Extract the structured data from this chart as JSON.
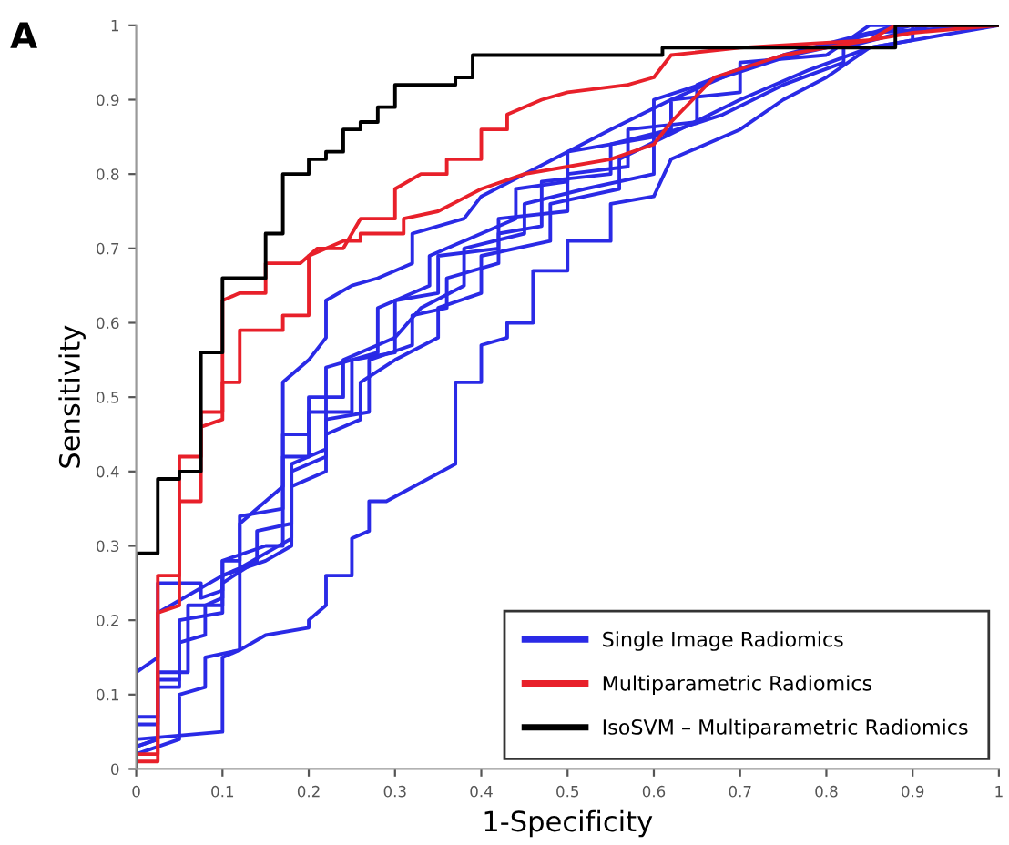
{
  "chart_data": {
    "type": "line",
    "xlabel": "1-Specificity",
    "ylabel": "Sensitivity",
    "annotations": [
      "A"
    ],
    "xlim": [
      0,
      1
    ],
    "ylim": [
      0,
      1
    ],
    "xticks": [
      0,
      0.1,
      0.2,
      0.3,
      0.4,
      0.5,
      0.6,
      0.7,
      0.8,
      0.9,
      1
    ],
    "yticks": [
      0,
      0.1,
      0.2,
      0.3,
      0.4,
      0.5,
      0.6,
      0.7,
      0.8,
      0.9,
      1
    ],
    "grid": false,
    "legend": "bottom right",
    "marker": "none",
    "line_style": "solid",
    "series": [
      {
        "name": "Single Image Radiomics",
        "color": "#2a2ae6",
        "x": [
          0,
          0,
          0.1,
          0.1,
          0.12,
          0.15,
          0.2,
          0.2,
          0.22,
          0.22,
          0.25,
          0.25,
          0.27,
          0.27,
          0.29,
          0.37,
          0.37,
          0.4,
          0.4,
          0.43,
          0.43,
          0.46,
          0.46,
          0.5,
          0.5,
          0.55,
          0.55,
          0.6,
          0.62,
          0.7,
          0.75,
          0.8,
          0.85,
          0.9,
          0.9,
          1
        ],
        "values": [
          0,
          0.04,
          0.05,
          0.15,
          0.16,
          0.18,
          0.19,
          0.2,
          0.22,
          0.26,
          0.26,
          0.31,
          0.32,
          0.36,
          0.36,
          0.41,
          0.52,
          0.52,
          0.57,
          0.58,
          0.6,
          0.6,
          0.67,
          0.67,
          0.71,
          0.71,
          0.76,
          0.77,
          0.82,
          0.86,
          0.9,
          0.93,
          0.97,
          0.98,
          1,
          1
        ]
      },
      {
        "color": "#2a2ae6",
        "x": [
          0,
          0,
          0.025,
          0.025,
          0.05,
          0.05,
          0.1,
          0.1,
          0.12,
          0.12,
          0.17,
          0.17,
          0.2,
          0.2,
          0.25,
          0.25,
          0.3,
          0.3,
          0.35,
          0.35,
          0.42,
          0.42,
          0.5,
          0.5,
          0.57,
          0.57,
          0.65,
          0.65,
          0.72,
          0.8,
          0.88,
          1
        ],
        "values": [
          0,
          0.07,
          0.07,
          0.12,
          0.12,
          0.2,
          0.21,
          0.26,
          0.27,
          0.34,
          0.35,
          0.42,
          0.42,
          0.48,
          0.48,
          0.55,
          0.56,
          0.63,
          0.64,
          0.69,
          0.7,
          0.74,
          0.75,
          0.8,
          0.81,
          0.86,
          0.87,
          0.92,
          0.95,
          0.97,
          1,
          1
        ]
      },
      {
        "color": "#2a2ae6",
        "x": [
          0,
          0,
          0.025,
          0.025,
          0.075,
          0.075,
          0.1,
          0.1,
          0.15,
          0.17,
          0.17,
          0.2,
          0.2,
          0.24,
          0.24,
          0.3,
          0.33,
          0.38,
          0.38,
          0.45,
          0.45,
          0.52,
          0.6,
          0.6,
          0.68,
          0.75,
          0.82,
          0.82,
          0.92,
          1
        ],
        "values": [
          0,
          0.13,
          0.15,
          0.25,
          0.25,
          0.23,
          0.24,
          0.28,
          0.3,
          0.3,
          0.45,
          0.45,
          0.5,
          0.5,
          0.55,
          0.58,
          0.62,
          0.65,
          0.7,
          0.72,
          0.76,
          0.78,
          0.8,
          0.85,
          0.88,
          0.92,
          0.95,
          0.97,
          1,
          1
        ]
      },
      {
        "color": "#2a2ae6",
        "x": [
          0,
          0,
          0.025,
          0.025,
          0.05,
          0.05,
          0.08,
          0.08,
          0.1,
          0.1,
          0.12,
          0.12,
          0.15,
          0.17,
          0.17,
          0.2,
          0.22,
          0.22,
          0.25,
          0.28,
          0.32,
          0.32,
          0.38,
          0.4,
          0.45,
          0.5,
          0.55,
          0.62,
          0.7,
          0.75,
          0.85,
          1
        ],
        "values": [
          0,
          0.03,
          0.04,
          0.11,
          0.11,
          0.17,
          0.18,
          0.22,
          0.23,
          0.28,
          0.28,
          0.33,
          0.36,
          0.38,
          0.52,
          0.55,
          0.58,
          0.63,
          0.65,
          0.66,
          0.68,
          0.72,
          0.74,
          0.77,
          0.8,
          0.83,
          0.86,
          0.9,
          0.94,
          0.96,
          0.99,
          1
        ]
      },
      {
        "color": "#2a2ae6",
        "x": [
          0,
          0,
          0.05,
          0.05,
          0.08,
          0.08,
          0.12,
          0.12,
          0.15,
          0.18,
          0.18,
          0.22,
          0.22,
          0.27,
          0.27,
          0.32,
          0.32,
          0.36,
          0.36,
          0.42,
          0.42,
          0.47,
          0.47,
          0.55,
          0.55,
          0.62,
          0.62,
          0.7,
          0.7,
          0.8,
          0.85,
          1
        ],
        "values": [
          0,
          0.02,
          0.04,
          0.1,
          0.11,
          0.15,
          0.16,
          0.27,
          0.29,
          0.31,
          0.4,
          0.42,
          0.47,
          0.48,
          0.55,
          0.57,
          0.61,
          0.62,
          0.66,
          0.68,
          0.72,
          0.73,
          0.79,
          0.8,
          0.84,
          0.86,
          0.9,
          0.91,
          0.95,
          0.96,
          1,
          1
        ]
      },
      {
        "color": "#2a2ae6",
        "x": [
          0,
          0,
          0.025,
          0.025,
          0.1,
          0.1,
          0.15,
          0.18,
          0.18,
          0.22,
          0.22,
          0.26,
          0.26,
          0.3,
          0.35,
          0.35,
          0.4,
          0.4,
          0.48,
          0.48,
          0.56,
          0.56,
          0.63,
          0.7,
          0.78,
          0.85,
          1
        ],
        "values": [
          0,
          0.06,
          0.06,
          0.21,
          0.26,
          0.26,
          0.28,
          0.3,
          0.38,
          0.4,
          0.45,
          0.47,
          0.52,
          0.55,
          0.58,
          0.62,
          0.64,
          0.69,
          0.71,
          0.76,
          0.78,
          0.82,
          0.86,
          0.9,
          0.94,
          0.97,
          1
        ]
      },
      {
        "color": "#2a2ae6",
        "x": [
          0,
          0,
          0.025,
          0.025,
          0.06,
          0.06,
          0.1,
          0.1,
          0.14,
          0.14,
          0.18,
          0.18,
          0.22,
          0.22,
          0.28,
          0.28,
          0.34,
          0.34,
          0.4,
          0.44,
          0.44,
          0.5,
          0.5,
          0.6,
          0.6,
          0.68,
          0.76,
          0.82,
          0.9,
          1
        ],
        "values": [
          0,
          0.03,
          0.04,
          0.13,
          0.13,
          0.22,
          0.22,
          0.25,
          0.28,
          0.32,
          0.33,
          0.41,
          0.43,
          0.54,
          0.56,
          0.62,
          0.65,
          0.69,
          0.72,
          0.74,
          0.78,
          0.79,
          0.83,
          0.85,
          0.9,
          0.93,
          0.96,
          0.98,
          1,
          1
        ]
      },
      {
        "name": "Multiparametric Radiomics",
        "color": "#e8202a",
        "x": [
          0,
          0,
          0.025,
          0.025,
          0.05,
          0.05,
          0.075,
          0.075,
          0.1,
          0.1,
          0.12,
          0.15,
          0.15,
          0.19,
          0.21,
          0.24,
          0.26,
          0.3,
          0.3,
          0.33,
          0.36,
          0.36,
          0.4,
          0.4,
          0.43,
          0.43,
          0.47,
          0.5,
          0.57,
          0.6,
          0.62,
          0.7,
          0.85,
          0.88,
          1
        ],
        "values": [
          0,
          0.02,
          0.02,
          0.26,
          0.26,
          0.42,
          0.42,
          0.48,
          0.48,
          0.63,
          0.64,
          0.64,
          0.68,
          0.68,
          0.7,
          0.7,
          0.74,
          0.74,
          0.78,
          0.8,
          0.8,
          0.82,
          0.82,
          0.86,
          0.86,
          0.88,
          0.9,
          0.91,
          0.92,
          0.93,
          0.96,
          0.97,
          0.98,
          1,
          1
        ]
      },
      {
        "color": "#e8202a",
        "x": [
          0,
          0,
          0.025,
          0.025,
          0.05,
          0.05,
          0.075,
          0.075,
          0.1,
          0.1,
          0.12,
          0.12,
          0.17,
          0.17,
          0.2,
          0.2,
          0.24,
          0.26,
          0.26,
          0.31,
          0.31,
          0.35,
          0.4,
          0.45,
          0.5,
          0.55,
          0.6,
          0.62,
          0.67,
          0.75,
          0.85,
          0.9,
          1
        ],
        "values": [
          0,
          0.01,
          0.01,
          0.21,
          0.22,
          0.36,
          0.36,
          0.46,
          0.47,
          0.52,
          0.52,
          0.59,
          0.59,
          0.61,
          0.61,
          0.69,
          0.71,
          0.71,
          0.72,
          0.72,
          0.74,
          0.75,
          0.78,
          0.8,
          0.81,
          0.82,
          0.84,
          0.87,
          0.93,
          0.96,
          0.98,
          0.99,
          1
        ]
      },
      {
        "name": "IsoSVM – Multiparametric Radiomics",
        "color": "#000000",
        "x": [
          0,
          0,
          0.025,
          0.025,
          0.05,
          0.05,
          0.075,
          0.075,
          0.1,
          0.1,
          0.15,
          0.15,
          0.17,
          0.17,
          0.2,
          0.2,
          0.22,
          0.22,
          0.24,
          0.24,
          0.26,
          0.26,
          0.28,
          0.28,
          0.3,
          0.3,
          0.37,
          0.37,
          0.39,
          0.39,
          0.61,
          0.61,
          0.88,
          0.88,
          1
        ],
        "values": [
          0,
          0.29,
          0.29,
          0.39,
          0.39,
          0.4,
          0.4,
          0.56,
          0.56,
          0.66,
          0.66,
          0.72,
          0.72,
          0.8,
          0.8,
          0.82,
          0.82,
          0.83,
          0.83,
          0.86,
          0.86,
          0.87,
          0.87,
          0.89,
          0.89,
          0.92,
          0.92,
          0.93,
          0.93,
          0.96,
          0.96,
          0.97,
          0.97,
          1,
          1
        ]
      }
    ]
  }
}
